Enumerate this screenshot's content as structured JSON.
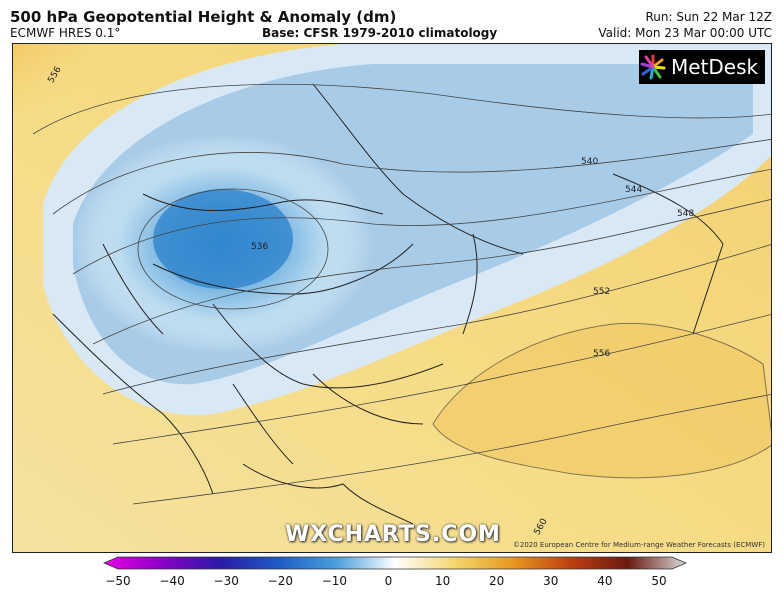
{
  "header": {
    "title": "500 hPa Geopotential Height & Anomaly (dm)",
    "model": "ECMWF HRES 0.1°",
    "base": "Base: CFSR 1979-2010 climatology",
    "run": "Run: Sun 22 Mar 12Z",
    "valid": "Valid: Mon 23 Mar 00:00 UTC"
  },
  "logo": {
    "text": "MetDesk",
    "icon": "metdesk-star-icon"
  },
  "watermark": "WXCHARTS.COM",
  "credit": "©2020 European Centre for Medium-range Weather Forecasts (ECMWF)",
  "contours": {
    "c536": "536",
    "c540": "540",
    "c544": "544",
    "c548": "548",
    "c552": "552",
    "c556_a": "556",
    "c556_b": "556",
    "c560": "560"
  },
  "colorbar": {
    "ticks": [
      "−50",
      "−40",
      "−30",
      "−20",
      "−10",
      "0",
      "10",
      "20",
      "30",
      "40",
      "50"
    ],
    "colors": [
      "#e800e8",
      "#8a00c8",
      "#2a1aa8",
      "#1d5cc8",
      "#4aa0dc",
      "#ffffff",
      "#f4d870",
      "#e89a20",
      "#c04010",
      "#6a1a10",
      "#d8d8d8"
    ]
  }
}
